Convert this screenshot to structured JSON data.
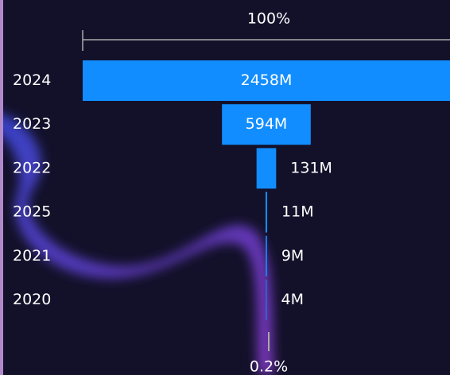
{
  "chart_data": {
    "type": "funnel",
    "categories": [
      "2024",
      "2023",
      "2022",
      "2025",
      "2021",
      "2020"
    ],
    "values": [
      2458,
      594,
      131,
      11,
      9,
      4
    ],
    "value_labels": [
      "2458M",
      "594M",
      "131M",
      "11M",
      "9M",
      "4M"
    ],
    "color": "#118dff",
    "annotations": {
      "top": "100%",
      "bottom": "0.2%"
    }
  }
}
